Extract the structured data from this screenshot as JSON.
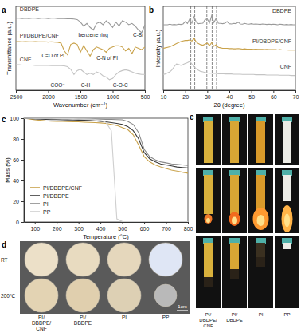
{
  "chart_data": [
    {
      "type": "line",
      "panel_label": "a",
      "x_label": "Wavenumber (cm⁻¹)",
      "y_label": "Transmittance (a.u.)",
      "x": [
        2500,
        2450,
        2400,
        2350,
        2300,
        2250,
        2200,
        2150,
        2100,
        2050,
        2000,
        1950,
        1900,
        1850,
        1800,
        1750,
        1700,
        1650,
        1600,
        1550,
        1500,
        1450,
        1400,
        1350,
        1300,
        1250,
        1200,
        1150,
        1100,
        1050,
        1000,
        950,
        900,
        850,
        800,
        750,
        700,
        650,
        600,
        550,
        500
      ],
      "series": [
        {
          "name": "DBDPE",
          "color": "#9a9a9a",
          "values": [
            2.75,
            2.75,
            2.74,
            2.75,
            2.74,
            2.75,
            2.75,
            2.74,
            2.75,
            2.75,
            2.74,
            2.75,
            2.75,
            2.74,
            2.74,
            2.74,
            2.73,
            2.73,
            2.72,
            2.7,
            2.6,
            2.45,
            2.55,
            2.4,
            2.3,
            2.55,
            2.6,
            2.5,
            2.65,
            2.55,
            2.4,
            2.6,
            2.45,
            2.65,
            2.6,
            2.5,
            2.55,
            2.45,
            2.3,
            2.2,
            2.5
          ]
        },
        {
          "name": "PI/DBDPE/CNF",
          "color": "#c9a24a",
          "values": [
            1.86,
            1.86,
            1.85,
            1.86,
            1.85,
            1.85,
            1.86,
            1.85,
            1.85,
            1.85,
            1.84,
            1.85,
            1.84,
            1.83,
            1.8,
            1.5,
            1.35,
            1.75,
            1.8,
            1.75,
            1.45,
            1.7,
            1.5,
            1.3,
            1.55,
            1.65,
            1.6,
            1.55,
            1.45,
            1.6,
            1.65,
            1.7,
            1.7,
            1.65,
            1.5,
            1.6,
            1.4,
            1.65,
            1.6,
            1.55,
            1.65
          ]
        },
        {
          "name": "CNF",
          "color": "#c4c4c4",
          "values": [
            0.97,
            0.97,
            0.96,
            0.96,
            0.96,
            0.96,
            0.95,
            0.95,
            0.95,
            0.95,
            0.95,
            0.94,
            0.94,
            0.94,
            0.94,
            0.93,
            0.9,
            0.8,
            0.6,
            0.75,
            0.8,
            0.7,
            0.6,
            0.65,
            0.6,
            0.7,
            0.65,
            0.55,
            0.5,
            0.4,
            0.45,
            0.6,
            0.7,
            0.75,
            0.78,
            0.75,
            0.7,
            0.65,
            0.62,
            0.6,
            0.6
          ]
        }
      ],
      "annotations": [
        "benzene ring",
        "C-Br",
        "C=O of PI",
        "C-N of PI",
        "COO⁻",
        "C-H",
        "C-O-C"
      ],
      "xlim": [
        2500,
        500
      ],
      "xticks": [
        2500,
        2000,
        1500,
        1000,
        500
      ],
      "ylim": [
        0,
        3.2
      ],
      "tick_labels": "x",
      "grid": false
    },
    {
      "type": "line",
      "panel_label": "b",
      "x_label": "2θ (degree)",
      "y_label": "Intensity (a.u.)",
      "x": [
        10,
        11,
        12,
        13,
        14,
        15,
        16,
        17,
        18,
        19,
        20,
        21,
        22,
        23,
        24,
        25,
        26,
        27,
        28,
        29,
        30,
        31,
        32,
        33,
        34,
        35,
        36,
        37,
        38,
        39,
        40,
        41,
        42,
        43,
        44,
        45,
        46,
        47,
        48,
        49,
        50,
        51,
        52,
        53,
        54,
        55,
        56,
        57,
        58,
        59,
        60,
        61,
        62,
        63,
        64,
        65,
        66,
        67,
        68,
        69,
        70
      ],
      "series": [
        {
          "name": "DBDPE",
          "color": "#9a9a9a",
          "values": [
            2.5,
            2.5,
            2.5,
            2.52,
            2.5,
            2.51,
            2.5,
            2.52,
            2.51,
            2.53,
            2.62,
            2.55,
            2.72,
            2.56,
            2.8,
            2.6,
            2.54,
            2.55,
            2.56,
            2.7,
            2.72,
            2.57,
            2.85,
            2.58,
            2.75,
            2.56,
            2.55,
            2.54,
            2.56,
            2.62,
            2.54,
            2.53,
            2.55,
            2.54,
            2.6,
            2.53,
            2.52,
            2.55,
            2.53,
            2.52,
            2.54,
            2.52,
            2.53,
            2.52,
            2.51,
            2.53,
            2.52,
            2.51,
            2.52,
            2.51,
            2.52,
            2.51,
            2.5,
            2.52,
            2.51,
            2.5,
            2.51,
            2.5,
            2.51,
            2.5,
            2.5
          ]
        },
        {
          "name": "PI/DBDPE/CNF",
          "color": "#c9a24a",
          "values": [
            1.6,
            1.62,
            1.64,
            1.66,
            1.7,
            1.74,
            1.78,
            1.82,
            1.86,
            1.88,
            1.9,
            1.9,
            1.92,
            1.88,
            1.98,
            1.84,
            1.78,
            1.74,
            1.72,
            1.76,
            1.8,
            1.7,
            1.82,
            1.68,
            1.74,
            1.64,
            1.62,
            1.6,
            1.6,
            1.6,
            1.59,
            1.59,
            1.58,
            1.58,
            1.59,
            1.58,
            1.57,
            1.58,
            1.57,
            1.57,
            1.57,
            1.56,
            1.57,
            1.56,
            1.56,
            1.56,
            1.55,
            1.56,
            1.55,
            1.55,
            1.55,
            1.55,
            1.54,
            1.55,
            1.54,
            1.54,
            1.54,
            1.53,
            1.54,
            1.53,
            1.53
          ]
        },
        {
          "name": "CNF",
          "color": "#c4c4c4",
          "values": [
            0.6,
            0.62,
            0.66,
            0.7,
            0.78,
            0.9,
            1.0,
            0.98,
            0.95,
            0.98,
            1.02,
            1.05,
            1.1,
            1.0,
            0.9,
            0.82,
            0.76,
            0.72,
            0.7,
            0.68,
            0.66,
            0.65,
            0.65,
            0.64,
            0.64,
            0.63,
            0.63,
            0.63,
            0.62,
            0.62,
            0.62,
            0.62,
            0.61,
            0.61,
            0.61,
            0.61,
            0.6,
            0.6,
            0.6,
            0.6,
            0.6,
            0.6,
            0.59,
            0.59,
            0.59,
            0.59,
            0.59,
            0.58,
            0.58,
            0.58,
            0.58,
            0.58,
            0.58,
            0.57,
            0.57,
            0.57,
            0.57,
            0.57,
            0.56,
            0.56,
            0.56
          ]
        }
      ],
      "vlines": [
        22.5,
        24.3,
        29.8,
        32.2,
        34.2
      ],
      "xlim": [
        10,
        70
      ],
      "xticks": [
        10,
        20,
        30,
        40,
        50,
        60,
        70
      ],
      "ylim": [
        0,
        3.2
      ],
      "tick_labels": "x",
      "grid": false
    },
    {
      "type": "line",
      "panel_label": "c",
      "x_label": "Temperature (°C)",
      "y_label": "Mass (%)",
      "x": [
        50,
        75,
        100,
        125,
        150,
        175,
        200,
        225,
        250,
        275,
        300,
        325,
        350,
        375,
        400,
        425,
        450,
        475,
        500,
        525,
        550,
        575,
        600,
        625,
        650,
        675,
        700,
        725,
        750,
        775,
        800
      ],
      "series": [
        {
          "name": "PI/DBDPE/CNF",
          "color": "#c9a24a",
          "values": [
            100,
            99.3,
            98.5,
            98,
            97.5,
            97.2,
            97,
            96.9,
            96.8,
            96.6,
            96.5,
            96.2,
            96,
            95.8,
            95.5,
            95,
            94,
            93,
            91,
            89,
            84,
            74,
            63,
            58,
            55,
            53,
            51.5,
            50,
            49,
            48,
            47
          ]
        },
        {
          "name": "PI/DBDPE",
          "color": "#3a3a3a",
          "values": [
            100,
            99.6,
            99.2,
            99,
            98.8,
            98.7,
            98.6,
            98.5,
            98.4,
            98.3,
            98.2,
            98,
            97.8,
            97.5,
            97,
            96.5,
            95.8,
            95,
            94,
            92,
            88,
            80,
            67,
            61,
            58,
            56,
            55,
            54,
            53,
            52.5,
            52
          ]
        },
        {
          "name": "PI",
          "color": "#8a8a8a",
          "values": [
            100,
            99.9,
            99.8,
            99.7,
            99.6,
            99.6,
            99.5,
            99.5,
            99.4,
            99.4,
            99.3,
            99.3,
            99.2,
            99.1,
            99,
            98.9,
            98.8,
            98.7,
            98.5,
            97,
            94,
            86,
            70,
            63,
            60,
            58,
            57,
            56,
            55.5,
            55,
            54.5
          ]
        },
        {
          "name": "PP",
          "color": "#cfcfcf",
          "values": [
            100,
            100,
            99.9,
            99.9,
            99.8,
            99.8,
            99.7,
            99.7,
            99.6,
            99.5,
            99.4,
            99.3,
            99.1,
            98.8,
            98,
            96,
            88,
            3,
            0.5,
            0.4,
            0.4,
            0.4,
            0.4,
            0.4,
            0.4,
            0.4,
            0.4,
            0.4,
            0.4,
            0.4,
            0.4
          ]
        }
      ],
      "xlim": [
        50,
        800
      ],
      "xticks": [
        100,
        200,
        300,
        400,
        500,
        600,
        700,
        800
      ],
      "ylim": [
        0,
        100
      ],
      "yticks": [
        0,
        20,
        40,
        60,
        80,
        100
      ],
      "legend": "lower left",
      "grid": false
    }
  ],
  "photo_panels": [
    {
      "panel_label": "d",
      "row_labels": [
        "RT",
        "200℃"
      ],
      "column_labels": [
        [
          "PI/",
          "DBDPE/",
          "CNF"
        ],
        [
          "PI/",
          "DBDPE"
        ],
        [
          "PI"
        ],
        [
          "PP"
        ]
      ],
      "scale_bar": "1cm"
    },
    {
      "panel_label": "e",
      "column_labels": [
        [
          "PI/",
          "DBDPE/",
          "CNF"
        ],
        [
          "PI/",
          "DBDPE"
        ],
        [
          "PI"
        ],
        [
          "PP"
        ]
      ]
    }
  ]
}
